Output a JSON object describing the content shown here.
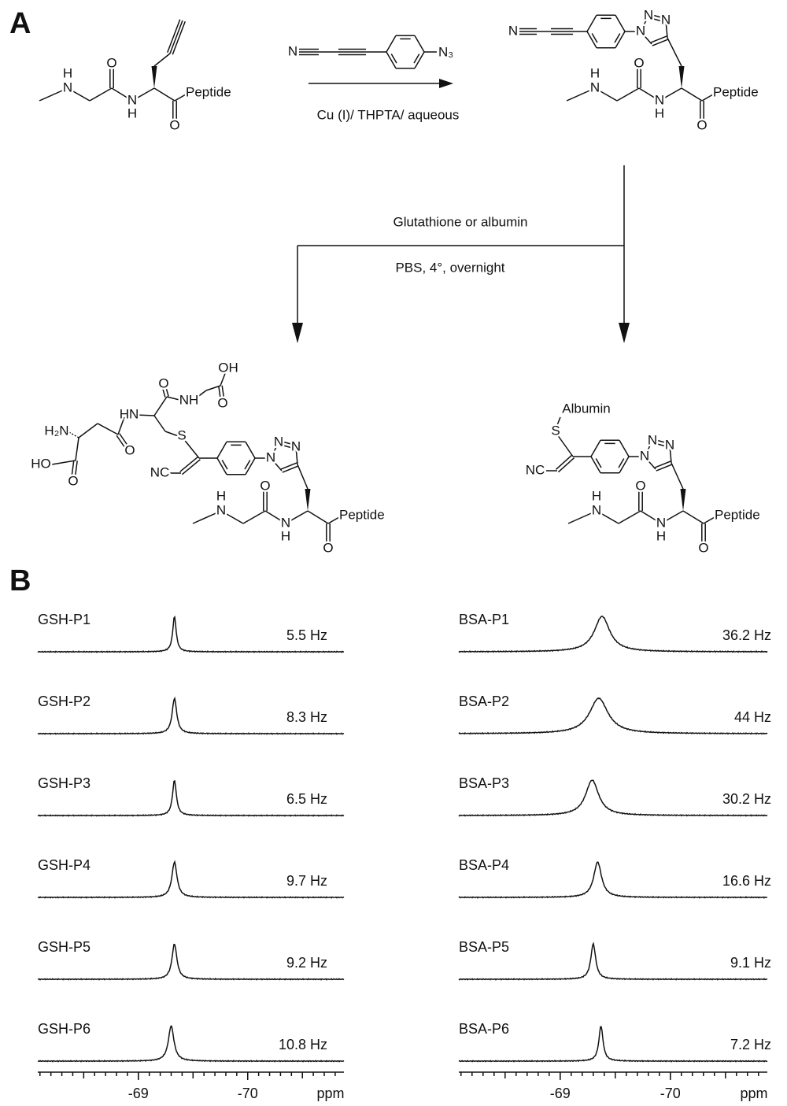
{
  "scheme": {
    "panel_label": "A",
    "reagent_conditions": "Cu (I)/ THPTA/ aqueous",
    "conditions": [
      "Glutathione or albumin",
      "PBS, 4°, overnight"
    ],
    "structures": {
      "alkyne_peptide": [
        "H",
        "N",
        "O",
        "N",
        "H",
        "O",
        "Peptide"
      ],
      "reagent": [
        "N",
        "N₃"
      ],
      "triazole_product": [
        "N",
        "N",
        "N",
        "N",
        "H",
        "N",
        "O",
        "N",
        "H",
        "O",
        "Peptide"
      ],
      "gsh_adduct": [
        "OH",
        "O",
        "HN",
        "NH",
        "O",
        "H₂N",
        "HO",
        "O",
        "O",
        "S",
        "NC",
        "N",
        "N",
        "N",
        "H",
        "N",
        "O",
        "N",
        "H",
        "O",
        "Peptide"
      ],
      "albumin_adduct": [
        "Albumin",
        "S",
        "NC",
        "N",
        "N",
        "N",
        "H",
        "N",
        "O",
        "N",
        "H",
        "O",
        "Peptide"
      ]
    }
  },
  "spectra": {
    "panel_label": "B",
    "panels": [
      {
        "names": [
          "GSH-P1",
          "GSH-P2",
          "GSH-P3",
          "GSH-P4",
          "GSH-P5",
          "GSH-P6"
        ],
        "values": [
          5.5,
          8.3,
          6.5,
          9.7,
          9.2,
          10.8
        ],
        "value_labels": [
          "5.5 Hz",
          "8.3 Hz",
          "6.5 Hz",
          "9.7 Hz",
          "9.2 Hz",
          "10.8 Hz"
        ],
        "peaks": [
          -69.33,
          -69.33,
          -69.33,
          -69.33,
          -69.33,
          -69.3
        ],
        "xlim": [
          -68.08,
          -70.88
        ],
        "xticks": [
          -69,
          -70
        ],
        "xlabel": "ppm",
        "color": "#e02020"
      },
      {
        "names": [
          "BSA-P1",
          "BSA-P2",
          "BSA-P3",
          "BSA-P4",
          "BSA-P5",
          "BSA-P6"
        ],
        "values": [
          36.2,
          44,
          30.2,
          16.6,
          9.1,
          7.2
        ],
        "value_labels": [
          "36.2 Hz",
          "44 Hz",
          "30.2 Hz",
          "16.6 Hz",
          "9.1 Hz",
          "7.2 Hz"
        ],
        "peaks": [
          -69.38,
          -69.35,
          -69.29,
          -69.34,
          -69.3,
          -69.37
        ],
        "xlim": [
          -68.08,
          -70.88
        ],
        "xticks": [
          -69,
          -70
        ],
        "xlabel": "ppm",
        "color": "#e02020"
      }
    ]
  }
}
